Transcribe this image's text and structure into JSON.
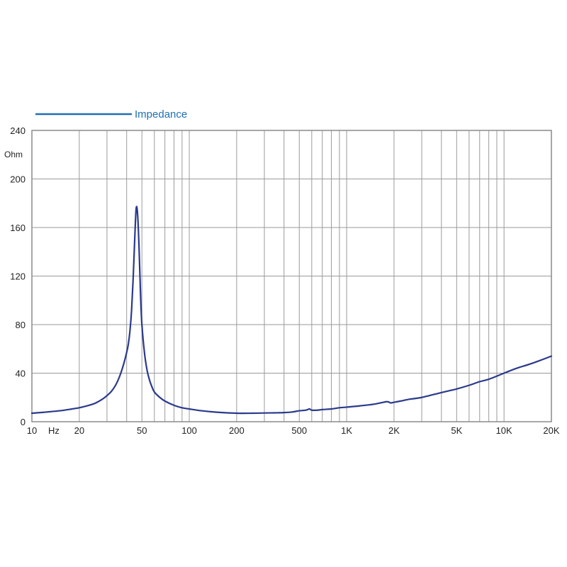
{
  "chart_data": {
    "type": "line",
    "legend": {
      "placement": "top-left",
      "entries": [
        "Impedance"
      ]
    },
    "colors": {
      "series": "#2b3a8c",
      "legend": "#1f6fb5",
      "grid": "#9a9a9a",
      "frame": "#8a8a8a"
    },
    "x_scale": "log",
    "xlim": [
      10,
      20000
    ],
    "ylim": [
      0,
      240
    ],
    "ylabel": "Ohm",
    "xunit_label": "Hz",
    "grid": true,
    "x_ticks": [
      {
        "value": 10,
        "label": "10"
      },
      {
        "value": 20,
        "label": "20"
      },
      {
        "value": 50,
        "label": "50"
      },
      {
        "value": 100,
        "label": "100"
      },
      {
        "value": 200,
        "label": "200"
      },
      {
        "value": 500,
        "label": "500"
      },
      {
        "value": 1000,
        "label": "1K"
      },
      {
        "value": 2000,
        "label": "2K"
      },
      {
        "value": 5000,
        "label": "5K"
      },
      {
        "value": 10000,
        "label": "10K"
      },
      {
        "value": 20000,
        "label": "20K"
      }
    ],
    "y_ticks": [
      {
        "value": 0,
        "label": "0"
      },
      {
        "value": 40,
        "label": "40"
      },
      {
        "value": 80,
        "label": "80"
      },
      {
        "value": 120,
        "label": "120"
      },
      {
        "value": 160,
        "label": "160"
      },
      {
        "value": 200,
        "label": "200"
      },
      {
        "value": 240,
        "label": "240"
      }
    ],
    "grid_x": [
      10,
      20,
      30,
      40,
      50,
      60,
      70,
      80,
      90,
      100,
      200,
      300,
      400,
      500,
      600,
      700,
      800,
      900,
      1000,
      2000,
      3000,
      4000,
      5000,
      6000,
      7000,
      8000,
      9000,
      10000,
      20000
    ],
    "series": [
      {
        "name": "Impedance",
        "x": [
          10,
          12,
          15,
          18,
          20,
          22,
          25,
          28,
          30,
          32,
          34,
          36,
          38,
          40,
          41,
          42,
          43,
          44,
          45,
          46,
          47,
          48,
          49,
          50,
          52,
          54,
          56,
          58,
          60,
          65,
          70,
          80,
          90,
          100,
          120,
          150,
          200,
          250,
          300,
          350,
          400,
          450,
          500,
          550,
          580,
          600,
          650,
          700,
          800,
          900,
          1000,
          1200,
          1500,
          1800,
          1900,
          2000,
          2200,
          2500,
          3000,
          4000,
          5000,
          6000,
          7000,
          8000,
          10000,
          12000,
          15000,
          20000
        ],
        "y": [
          7,
          7.8,
          9,
          10.5,
          11.5,
          12.8,
          15,
          18.5,
          21.5,
          25,
          30,
          37,
          46,
          57,
          64,
          75,
          92,
          118,
          150,
          176,
          170,
          142,
          105,
          80,
          56,
          42,
          34,
          28.5,
          24.5,
          20,
          17,
          13.5,
          11.5,
          10.5,
          9,
          7.8,
          7,
          7,
          7.2,
          7.3,
          7.5,
          8,
          9,
          9.5,
          10.5,
          9.5,
          9.5,
          10,
          10.5,
          11.5,
          12,
          13,
          14.5,
          16.5,
          15.5,
          16,
          17,
          18.5,
          20,
          24,
          27,
          30,
          33,
          35,
          40,
          44,
          48,
          54
        ]
      }
    ]
  }
}
